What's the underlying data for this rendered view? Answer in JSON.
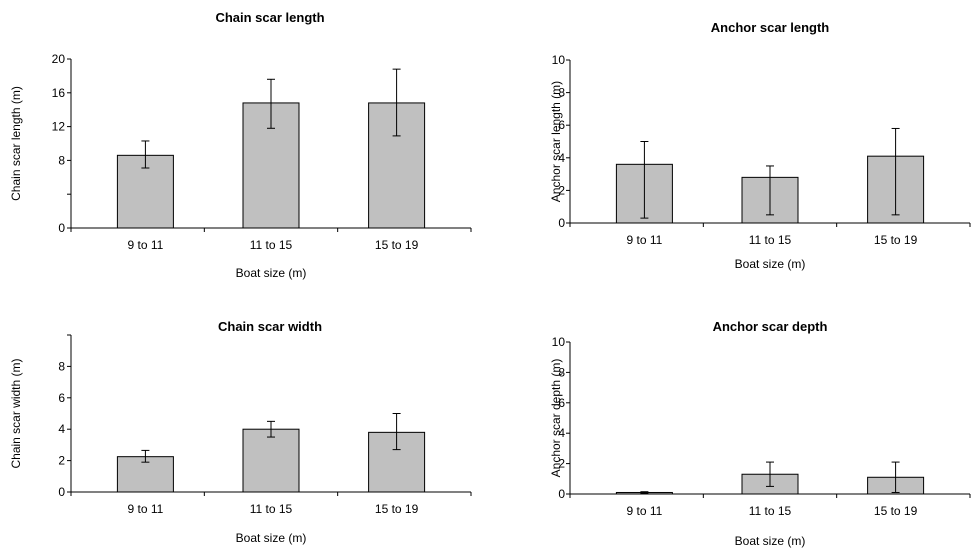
{
  "chart_data": [
    {
      "type": "bar",
      "title": "Chain scar length",
      "xlabel": "Boat size (m)",
      "ylabel": "Chain scar length (m)",
      "categories": [
        "9 to 11",
        "11 to 15",
        "15 to 19"
      ],
      "values": [
        8.6,
        14.8,
        14.8
      ],
      "error_low": [
        7.1,
        11.8,
        10.9
      ],
      "error_high": [
        10.3,
        17.6,
        18.8
      ],
      "ylim": [
        0,
        20
      ],
      "yticks": [
        "0",
        "",
        "8",
        "12",
        "16",
        "20"
      ],
      "grid": false,
      "bar_color": "#c0c0c0"
    },
    {
      "type": "bar",
      "title": "Anchor scar length",
      "xlabel": "Boat size (m)",
      "ylabel": "Anchor scar length (m)",
      "categories": [
        "9 to 11",
        "11 to 15",
        "15 to 19"
      ],
      "values": [
        3.6,
        2.8,
        4.1
      ],
      "error_low": [
        0.3,
        0.5,
        0.5
      ],
      "error_high": [
        5.0,
        3.5,
        5.8
      ],
      "ylim": [
        0,
        10
      ],
      "yticks": [
        "0",
        "2",
        "4",
        "6",
        "8",
        "10"
      ],
      "grid": false,
      "bar_color": "#c0c0c0"
    },
    {
      "type": "bar",
      "title": "Chain scar width",
      "xlabel": "Boat size (m)",
      "ylabel": "Chain scar width (m)",
      "categories": [
        "9 to 11",
        "11 to 15",
        "15 to 19"
      ],
      "values": [
        2.25,
        4.0,
        3.8
      ],
      "error_low": [
        1.9,
        3.5,
        2.7
      ],
      "error_high": [
        2.65,
        4.5,
        5.0
      ],
      "ylim": [
        0,
        10
      ],
      "yticks": [
        "0",
        "2",
        "4",
        "6",
        "8",
        ""
      ],
      "grid": false,
      "bar_color": "#c0c0c0"
    },
    {
      "type": "bar",
      "title": "Anchor scar depth",
      "xlabel": "Boat size (m)",
      "ylabel": "Anchor scar depth (m)",
      "categories": [
        "9 to 11",
        "11 to 15",
        "15 to 19"
      ],
      "values": [
        0.1,
        1.3,
        1.1
      ],
      "error_low": [
        0.05,
        0.5,
        0.1
      ],
      "error_high": [
        0.15,
        2.1,
        2.1
      ],
      "ylim": [
        0,
        10
      ],
      "yticks": [
        "0",
        "2",
        "4",
        "6",
        "8",
        "10"
      ],
      "grid": false,
      "bar_color": "#c0c0c0"
    }
  ]
}
